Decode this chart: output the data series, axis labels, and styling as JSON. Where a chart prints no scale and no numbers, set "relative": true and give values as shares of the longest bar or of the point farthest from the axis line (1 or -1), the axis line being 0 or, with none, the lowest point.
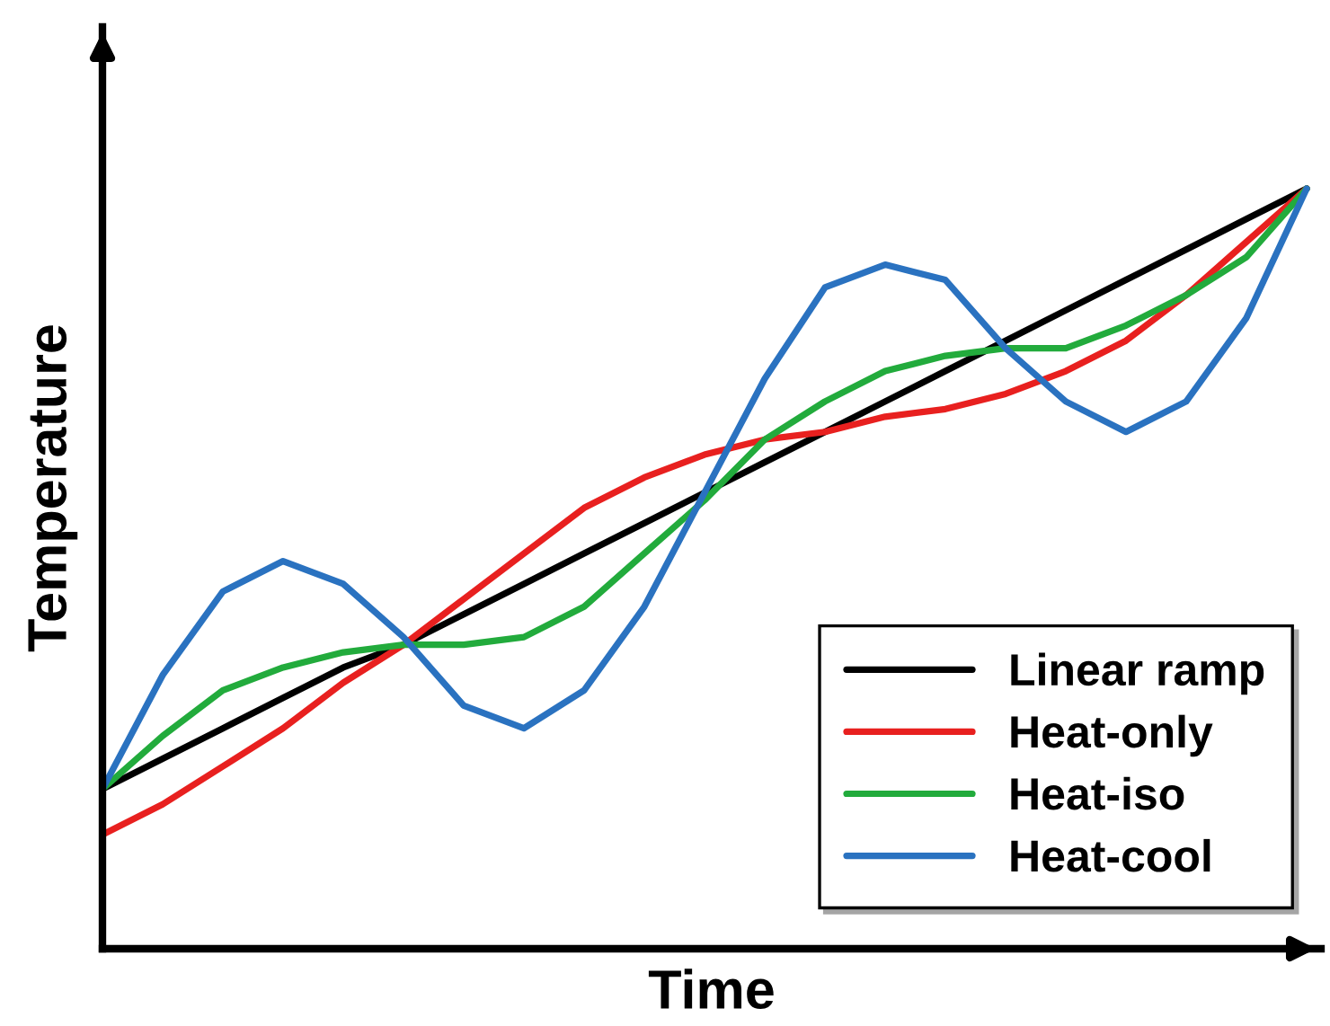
{
  "chart_data": {
    "type": "line",
    "relative": true,
    "xlabel": "Time",
    "ylabel": "Temperature",
    "legend": "bottom right",
    "tick_labels": false,
    "line_style": "solid",
    "categories": [
      null,
      null,
      null,
      null,
      null,
      null,
      null,
      null,
      null,
      null,
      null,
      null,
      null,
      null,
      null,
      null,
      null,
      null,
      null,
      null,
      null
    ],
    "series": [
      {
        "name": "Linear ramp",
        "color": "#000000",
        "values": [
          0.21,
          0.25,
          0.29,
          0.33,
          0.37,
          0.4,
          0.44,
          0.48,
          0.52,
          0.56,
          0.6,
          0.64,
          0.68,
          0.72,
          0.76,
          0.8,
          0.84,
          0.88,
          0.92,
          0.96,
          1
        ]
      },
      {
        "name": "Heat-only",
        "color": "#e8201f",
        "values": [
          0.15,
          0.19,
          0.24,
          0.29,
          0.35,
          0.4,
          0.46,
          0.52,
          0.58,
          0.62,
          0.65,
          0.67,
          0.68,
          0.7,
          0.71,
          0.73,
          0.76,
          0.8,
          0.86,
          0.93,
          1
        ]
      },
      {
        "name": "Heat-iso",
        "color": "#22ab3c",
        "values": [
          0.21,
          0.28,
          0.34,
          0.37,
          0.39,
          0.4,
          0.4,
          0.41,
          0.45,
          0.52,
          0.59,
          0.67,
          0.72,
          0.76,
          0.78,
          0.79,
          0.79,
          0.82,
          0.86,
          0.91,
          1
        ]
      },
      {
        "name": "Heat-cool",
        "color": "#2a72c0",
        "values": [
          0.21,
          0.36,
          0.47,
          0.51,
          0.48,
          0.41,
          0.32,
          0.29,
          0.34,
          0.45,
          0.6,
          0.75,
          0.87,
          0.9,
          0.88,
          0.79,
          0.72,
          0.68,
          0.72,
          0.83,
          1
        ]
      }
    ]
  }
}
